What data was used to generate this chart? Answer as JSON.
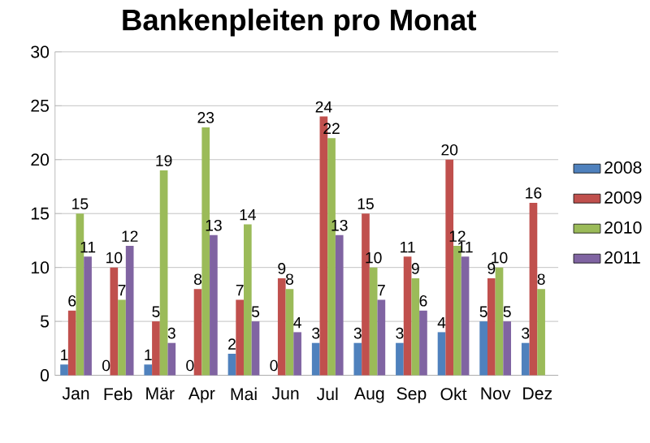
{
  "chart_data": {
    "type": "bar",
    "title": "Bankenpleiten pro Monat",
    "categories": [
      "Jan",
      "Feb",
      "Mär",
      "Apr",
      "Mai",
      "Jun",
      "Jul",
      "Aug",
      "Sep",
      "Okt",
      "Nov",
      "Dez"
    ],
    "series": [
      {
        "name": "2008",
        "color": "#4f81bd",
        "values": [
          1,
          0,
          1,
          0,
          2,
          0,
          3,
          3,
          3,
          4,
          5,
          3
        ]
      },
      {
        "name": "2009",
        "color": "#c0504d",
        "values": [
          6,
          10,
          5,
          8,
          7,
          9,
          24,
          15,
          11,
          20,
          9,
          16
        ]
      },
      {
        "name": "2010",
        "color": "#9bbb59",
        "values": [
          15,
          7,
          19,
          23,
          14,
          8,
          22,
          10,
          9,
          12,
          10,
          8
        ]
      },
      {
        "name": "2011",
        "color": "#8064a2",
        "values": [
          11,
          12,
          3,
          13,
          5,
          4,
          13,
          7,
          6,
          11,
          5,
          null
        ]
      }
    ],
    "ylim": [
      0,
      30
    ],
    "yticks": [
      0,
      5,
      10,
      15,
      20,
      25,
      30
    ],
    "grid": "y",
    "legend": "right",
    "data_labels": true
  }
}
